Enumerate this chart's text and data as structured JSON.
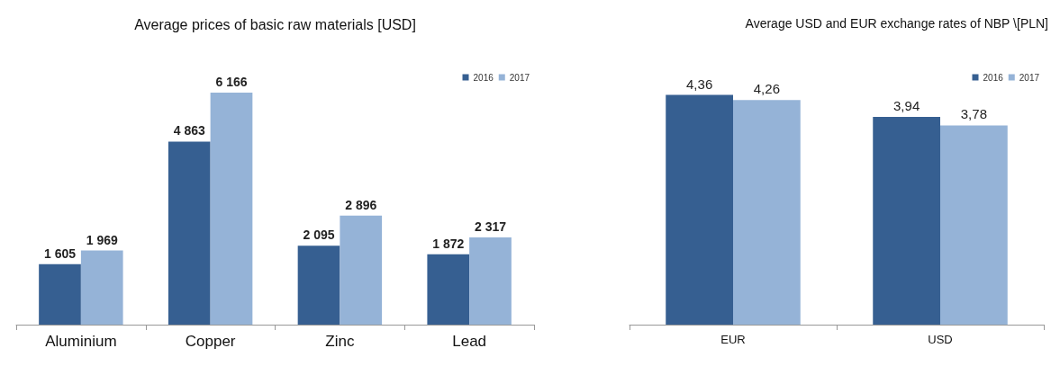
{
  "chart_data": [
    {
      "type": "bar",
      "title": "Average prices of basic raw materials [USD]",
      "categories": [
        "Aluminium",
        "Copper",
        "Zinc",
        "Lead"
      ],
      "series": [
        {
          "name": "2016",
          "color": "#365f91",
          "values": [
            1605,
            4863,
            2095,
            1872
          ],
          "value_labels": [
            "1 605",
            "4 863",
            "2 095",
            "1 872"
          ]
        },
        {
          "name": "2017",
          "color": "#95b3d7",
          "values": [
            1969,
            6166,
            2896,
            2317
          ],
          "value_labels": [
            "1 969",
            "6 166",
            "2 896",
            "2 317"
          ]
        }
      ],
      "legend": "top right"
    },
    {
      "type": "bar",
      "title": "Average USD and EUR exchange rates of NBP \\[PLN]",
      "categories": [
        "EUR",
        "USD"
      ],
      "series": [
        {
          "name": "2016",
          "color": "#365f91",
          "values": [
            4.36,
            3.94
          ],
          "value_labels": [
            "4,36",
            "3,94"
          ]
        },
        {
          "name": "2017",
          "color": "#95b3d7",
          "values": [
            4.26,
            3.78
          ],
          "value_labels": [
            "4,26",
            "3,78"
          ]
        }
      ],
      "legend": "top right"
    }
  ]
}
